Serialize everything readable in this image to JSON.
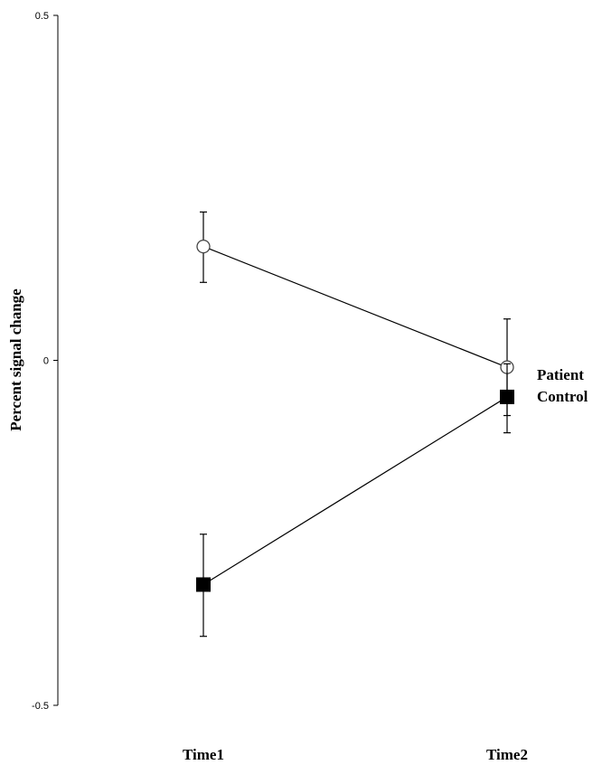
{
  "chart_data": {
    "type": "line",
    "ylabel": "Percent signal change",
    "ylim": [
      -0.5,
      0.5
    ],
    "yticks": [
      "0.5",
      "0",
      "-0.5"
    ],
    "categories": [
      "Time1",
      "Time2"
    ],
    "series": [
      {
        "name": "Patient",
        "marker": "open-circle",
        "values": [
          0.165,
          -0.01
        ],
        "error_upper": [
          0.215,
          0.06
        ],
        "error_lower": [
          0.113,
          -0.08
        ]
      },
      {
        "name": "Control",
        "marker": "filled-square",
        "values": [
          -0.325,
          -0.053
        ],
        "error_upper": [
          -0.252,
          -0.005
        ],
        "error_lower": [
          -0.4,
          -0.105
        ]
      }
    ],
    "grid": false,
    "legend": "right of Time2 points"
  }
}
